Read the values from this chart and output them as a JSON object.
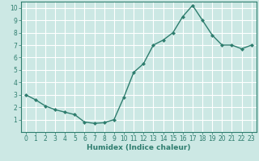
{
  "x": [
    0,
    1,
    2,
    3,
    4,
    5,
    6,
    7,
    8,
    9,
    10,
    11,
    12,
    13,
    14,
    15,
    16,
    17,
    18,
    19,
    20,
    21,
    22,
    23
  ],
  "y": [
    3.0,
    2.6,
    2.1,
    1.8,
    1.6,
    1.4,
    0.8,
    0.7,
    0.75,
    1.0,
    2.8,
    4.8,
    5.5,
    7.0,
    7.4,
    8.0,
    9.3,
    10.2,
    9.0,
    7.8,
    7.0,
    7.0,
    6.7,
    7.0
  ],
  "line_color": "#2e7d6e",
  "marker": "D",
  "marker_size": 2.0,
  "line_width": 1.0,
  "xlabel": "Humidex (Indice chaleur)",
  "xlim": [
    -0.5,
    23.5
  ],
  "ylim": [
    0,
    10.5
  ],
  "yticks": [
    1,
    2,
    3,
    4,
    5,
    6,
    7,
    8,
    9,
    10
  ],
  "xticks": [
    0,
    1,
    2,
    3,
    4,
    5,
    6,
    7,
    8,
    9,
    10,
    11,
    12,
    13,
    14,
    15,
    16,
    17,
    18,
    19,
    20,
    21,
    22,
    23
  ],
  "bg_color": "#cce8e4",
  "grid_color": "#ffffff",
  "tick_label_fontsize": 5.5,
  "xlabel_fontsize": 6.5,
  "tick_color": "#2e7d6e",
  "spine_color": "#2e7d6e"
}
